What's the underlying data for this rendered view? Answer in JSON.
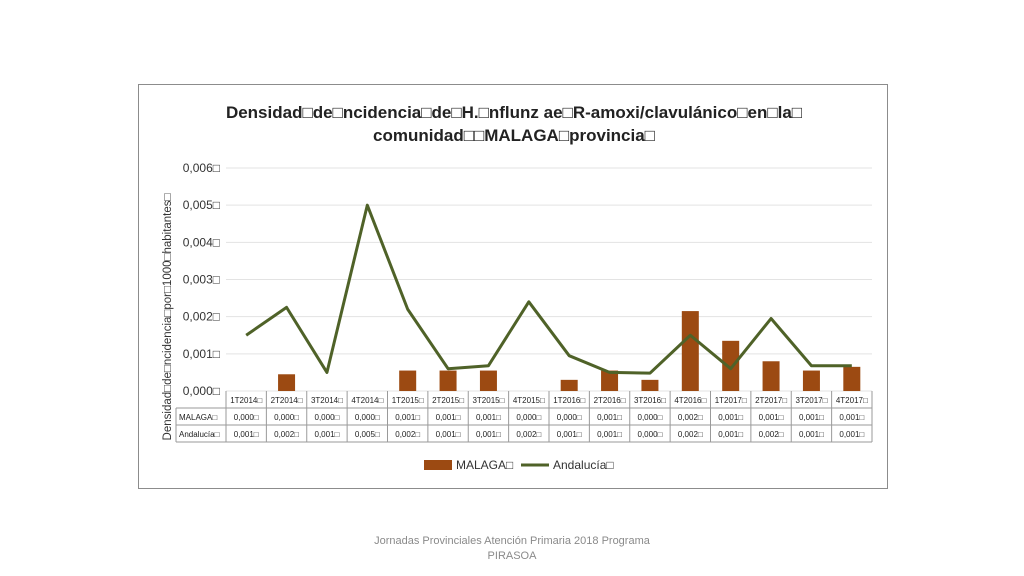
{
  "chart_data": {
    "type": "bar",
    "title_lines": [
      "Densidad□de□ncidencia□de□H.□nflunz  ae□R-amoxi/clavulánico□en□la□",
      "comunidad□□MALAGA□provincia□"
    ],
    "ylabel": "Densidad□de□ncidencia□por□1000□habitantes□",
    "yticks": [
      "0,006□",
      "0,005□",
      "0,004□",
      "0,003□",
      "0,002□",
      "0,001□",
      "0,000□"
    ],
    "ylim": [
      0,
      0.006
    ],
    "grid": true,
    "legend_position": "bottom",
    "categories": [
      "1T2014□",
      "2T2014□",
      "3T2014□",
      "4T2014□",
      "1T2015□",
      "2T2015□",
      "3T2015□",
      "4T2015□",
      "1T2016□",
      "2T2016□",
      "3T2016□",
      "4T2016□",
      "1T2017□",
      "2T2017□",
      "3T2017□",
      "4T2017□"
    ],
    "series": [
      {
        "name": "MALAGA□",
        "kind": "bar",
        "color": "#9c4a12",
        "values": [
          0.0,
          0.00045,
          0.0,
          0.0,
          0.00055,
          0.00055,
          0.00055,
          0.0,
          0.0003,
          0.00055,
          0.0003,
          0.00215,
          0.00135,
          0.0008,
          0.00055,
          0.00065
        ],
        "table_values": [
          "0,000□",
          "0,000□",
          "0,000□",
          "0,000□",
          "0,001□",
          "0,001□",
          "0,001□",
          "0,000□",
          "0,000□",
          "0,001□",
          "0,000□",
          "0,002□",
          "0,001□",
          "0,001□",
          "0,001□",
          "0,001□"
        ]
      },
      {
        "name": "Andalucía□",
        "kind": "line",
        "color": "#4f6228",
        "values": [
          0.0015,
          0.00225,
          0.0005,
          0.005,
          0.0022,
          0.0006,
          0.00068,
          0.0024,
          0.00095,
          0.0005,
          0.00048,
          0.0015,
          0.0006,
          0.00195,
          0.00068,
          0.00068
        ],
        "table_values": [
          "0,001□",
          "0,002□",
          "0,001□",
          "0,005□",
          "0,002□",
          "0,001□",
          "0,001□",
          "0,002□",
          "0,001□",
          "0,001□",
          "0,000□",
          "0,002□",
          "0,001□",
          "0,002□",
          "0,001□",
          "0,001□"
        ]
      }
    ],
    "row_labels": [
      "MALAGA□",
      "Andalucía□"
    ]
  },
  "footer": {
    "line1": "Jornadas Provinciales Atención Primaria 2018  Programa",
    "line2": "PIRASOA"
  }
}
